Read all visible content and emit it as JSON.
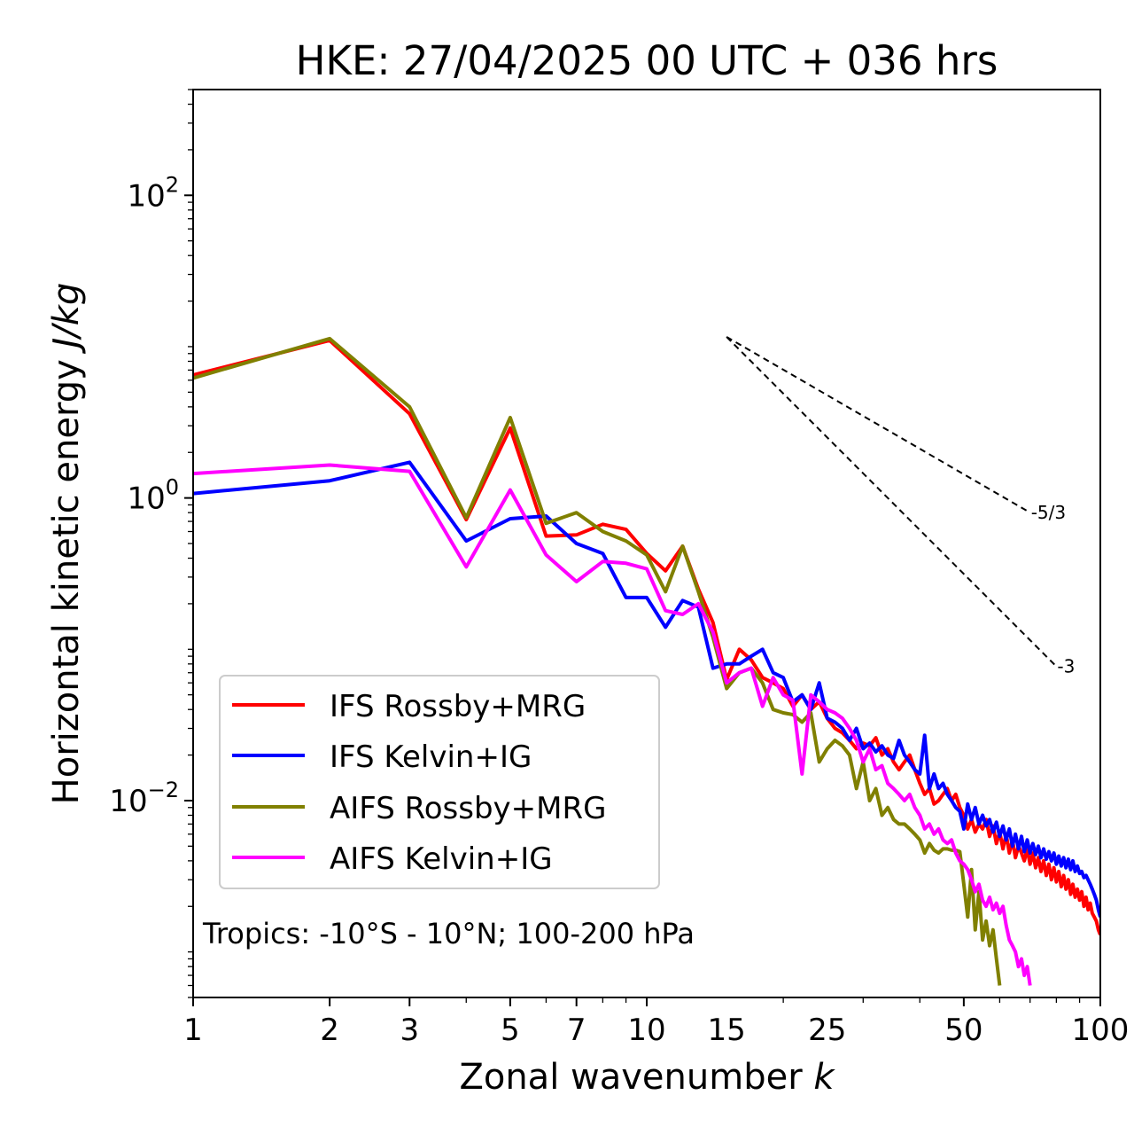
{
  "chart_data": {
    "type": "line",
    "title": "HKE: 27/04/2025 00 UTC + 036 hrs",
    "xlabel": "Zonal wavenumber",
    "xlabel_var": "k",
    "ylabel": "Horizontal kinetic energy",
    "ylabel_unit": "J/kg",
    "xscale": "log",
    "yscale": "log",
    "xlim": [
      1,
      100
    ],
    "ylim": [
      0.0005,
      500
    ],
    "xticks": [
      1,
      2,
      3,
      5,
      7,
      10,
      15,
      25,
      50,
      100
    ],
    "xtick_labels": [
      "1",
      "2",
      "3",
      "5",
      "7",
      "10",
      "15",
      "25",
      "50",
      "100"
    ],
    "yticks": [
      {
        "value": 0.01,
        "base": "10",
        "exp": "−2"
      },
      {
        "value": 1,
        "base": "10",
        "exp": "0"
      },
      {
        "value": 100,
        "base": "10",
        "exp": "2"
      }
    ],
    "annotation": "Tropics: -10°S - 10°N; 100-200 hPa",
    "legend_position": "lower-left",
    "grid": false,
    "reference_lines": [
      {
        "label": "-5/3",
        "x": [
          15,
          70
        ],
        "y": [
          11.6,
          0.8
        ]
      },
      {
        "label": "-3",
        "x": [
          15,
          80
        ],
        "y": [
          11.6,
          0.077
        ]
      }
    ],
    "series": [
      {
        "name": "IFS Rossby+MRG",
        "color": "#ff0000",
        "x": [
          1,
          2,
          3,
          4,
          5,
          6,
          7,
          8,
          9,
          10,
          11,
          12,
          13,
          14,
          15,
          16,
          17,
          18,
          19,
          20,
          21,
          22,
          23,
          24,
          25,
          26,
          27,
          28,
          29,
          30,
          31,
          32,
          33,
          34,
          35,
          36,
          37,
          38,
          39,
          40,
          41,
          42,
          43,
          44,
          45,
          46,
          47,
          48,
          49,
          50,
          51,
          52,
          53,
          54,
          55,
          56,
          57,
          58,
          59,
          60,
          61,
          62,
          63,
          64,
          65,
          66,
          67,
          68,
          69,
          70,
          71,
          72,
          73,
          74,
          75,
          76,
          77,
          78,
          79,
          80,
          81,
          82,
          83,
          84,
          85,
          86,
          87,
          88,
          89,
          90,
          91,
          92,
          93,
          94,
          95,
          96,
          97,
          98,
          99,
          100
        ],
        "y": [
          6.5,
          11.0,
          3.6,
          0.72,
          2.9,
          0.56,
          0.57,
          0.67,
          0.62,
          0.43,
          0.33,
          0.48,
          0.25,
          0.15,
          0.063,
          0.1,
          0.085,
          0.065,
          0.06,
          0.055,
          0.042,
          0.05,
          0.04,
          0.045,
          0.035,
          0.03,
          0.028,
          0.025,
          0.022,
          0.024,
          0.023,
          0.026,
          0.02,
          0.022,
          0.018,
          0.016,
          0.018,
          0.02,
          0.016,
          0.013,
          0.011,
          0.012,
          0.0095,
          0.01,
          0.011,
          0.012,
          0.01,
          0.011,
          0.009,
          0.008,
          0.0065,
          0.0075,
          0.0062,
          0.007,
          0.0065,
          0.0075,
          0.0058,
          0.0068,
          0.0052,
          0.0062,
          0.0048,
          0.006,
          0.0045,
          0.0055,
          0.0042,
          0.005,
          0.0045,
          0.004,
          0.0048,
          0.0038,
          0.0045,
          0.0036,
          0.0042,
          0.0034,
          0.004,
          0.0032,
          0.0038,
          0.003,
          0.0036,
          0.0029,
          0.0034,
          0.0027,
          0.0032,
          0.0026,
          0.003,
          0.0024,
          0.0028,
          0.0023,
          0.0026,
          0.0022,
          0.0025,
          0.002,
          0.0023,
          0.0019,
          0.0021,
          0.0018,
          0.0017,
          0.0016,
          0.0014,
          0.0013
        ]
      },
      {
        "name": "IFS Kelvin+IG",
        "color": "#0000ff",
        "x": [
          1,
          2,
          3,
          4,
          5,
          6,
          7,
          8,
          9,
          10,
          11,
          12,
          13,
          14,
          15,
          16,
          17,
          18,
          19,
          20,
          21,
          22,
          23,
          24,
          25,
          26,
          27,
          28,
          29,
          30,
          31,
          32,
          33,
          34,
          35,
          36,
          37,
          38,
          39,
          40,
          41,
          42,
          43,
          44,
          45,
          46,
          47,
          48,
          49,
          50,
          51,
          52,
          53,
          54,
          55,
          56,
          57,
          58,
          59,
          60,
          61,
          62,
          63,
          64,
          65,
          66,
          67,
          68,
          69,
          70,
          71,
          72,
          73,
          74,
          75,
          76,
          77,
          78,
          79,
          80,
          81,
          82,
          83,
          84,
          85,
          86,
          87,
          88,
          89,
          90,
          91,
          92,
          93,
          94,
          95,
          96,
          97,
          98,
          99,
          100
        ],
        "y": [
          1.07,
          1.3,
          1.72,
          0.52,
          0.73,
          0.76,
          0.5,
          0.43,
          0.22,
          0.22,
          0.14,
          0.21,
          0.19,
          0.075,
          0.08,
          0.08,
          0.09,
          0.1,
          0.07,
          0.065,
          0.045,
          0.05,
          0.04,
          0.06,
          0.035,
          0.033,
          0.03,
          0.025,
          0.03,
          0.022,
          0.024,
          0.021,
          0.023,
          0.02,
          0.019,
          0.025,
          0.02,
          0.018,
          0.016,
          0.015,
          0.027,
          0.012,
          0.015,
          0.012,
          0.013,
          0.011,
          0.01,
          0.009,
          0.0085,
          0.0065,
          0.0095,
          0.0075,
          0.009,
          0.007,
          0.008,
          0.0068,
          0.0075,
          0.0062,
          0.0072,
          0.0058,
          0.0068,
          0.0055,
          0.0065,
          0.005,
          0.006,
          0.0048,
          0.0058,
          0.0046,
          0.0055,
          0.0045,
          0.0052,
          0.0044,
          0.005,
          0.0042,
          0.0048,
          0.0041,
          0.0046,
          0.004,
          0.0045,
          0.0038,
          0.0043,
          0.0037,
          0.0042,
          0.0036,
          0.0041,
          0.0035,
          0.004,
          0.0034,
          0.0037,
          0.0033,
          0.0034,
          0.0031,
          0.0032,
          0.003,
          0.0028,
          0.0026,
          0.0024,
          0.0022,
          0.0019,
          0.0017
        ]
      },
      {
        "name": "AIFS Rossby+MRG",
        "color": "#808000",
        "x": [
          1,
          2,
          3,
          4,
          5,
          6,
          7,
          8,
          9,
          10,
          11,
          12,
          13,
          14,
          15,
          16,
          17,
          18,
          19,
          20,
          21,
          22,
          23,
          24,
          25,
          26,
          27,
          28,
          29,
          30,
          31,
          32,
          33,
          34,
          35,
          36,
          37,
          38,
          39,
          40,
          41,
          42,
          43,
          44,
          45,
          46,
          47,
          48,
          49,
          50,
          51,
          52,
          53,
          54,
          55,
          56,
          57,
          58,
          59,
          60
        ],
        "y": [
          6.2,
          11.3,
          4.0,
          0.74,
          3.4,
          0.68,
          0.8,
          0.6,
          0.52,
          0.42,
          0.24,
          0.48,
          0.24,
          0.12,
          0.055,
          0.07,
          0.075,
          0.06,
          0.04,
          0.038,
          0.037,
          0.033,
          0.038,
          0.018,
          0.022,
          0.025,
          0.023,
          0.02,
          0.012,
          0.018,
          0.01,
          0.012,
          0.008,
          0.009,
          0.0075,
          0.007,
          0.007,
          0.0065,
          0.006,
          0.0055,
          0.0045,
          0.0052,
          0.0047,
          0.0045,
          0.0048,
          0.0048,
          0.0047,
          0.0047,
          0.0046,
          0.0028,
          0.0017,
          0.0035,
          0.0014,
          0.0025,
          0.0012,
          0.0016,
          0.0011,
          0.0014,
          0.0009,
          0.0006
        ]
      },
      {
        "name": "AIFS Kelvin+IG",
        "color": "#ff00ff",
        "x": [
          1,
          2,
          3,
          4,
          5,
          6,
          7,
          8,
          9,
          10,
          11,
          12,
          13,
          14,
          15,
          16,
          17,
          18,
          19,
          20,
          21,
          22,
          23,
          24,
          25,
          26,
          27,
          28,
          29,
          30,
          31,
          32,
          33,
          34,
          35,
          36,
          37,
          38,
          39,
          40,
          41,
          42,
          43,
          44,
          45,
          46,
          47,
          48,
          49,
          50,
          51,
          52,
          53,
          54,
          55,
          56,
          57,
          58,
          59,
          60,
          61,
          62,
          63,
          64,
          65,
          66,
          67,
          68,
          69,
          70
        ],
        "y": [
          1.45,
          1.65,
          1.5,
          0.35,
          1.13,
          0.42,
          0.28,
          0.38,
          0.37,
          0.34,
          0.18,
          0.17,
          0.2,
          0.13,
          0.06,
          0.07,
          0.075,
          0.042,
          0.065,
          0.05,
          0.046,
          0.015,
          0.05,
          0.045,
          0.04,
          0.038,
          0.035,
          0.03,
          0.025,
          0.018,
          0.022,
          0.016,
          0.017,
          0.013,
          0.012,
          0.011,
          0.01,
          0.011,
          0.009,
          0.008,
          0.0065,
          0.007,
          0.006,
          0.0065,
          0.0055,
          0.0052,
          0.0055,
          0.0045,
          0.004,
          0.0038,
          0.0035,
          0.003,
          0.0025,
          0.0028,
          0.0022,
          0.002,
          0.0023,
          0.0019,
          0.0021,
          0.0018,
          0.002,
          0.0015,
          0.0012,
          0.0011,
          0.001,
          0.0008,
          0.0009,
          0.0007,
          0.0008,
          0.0006
        ]
      }
    ]
  }
}
